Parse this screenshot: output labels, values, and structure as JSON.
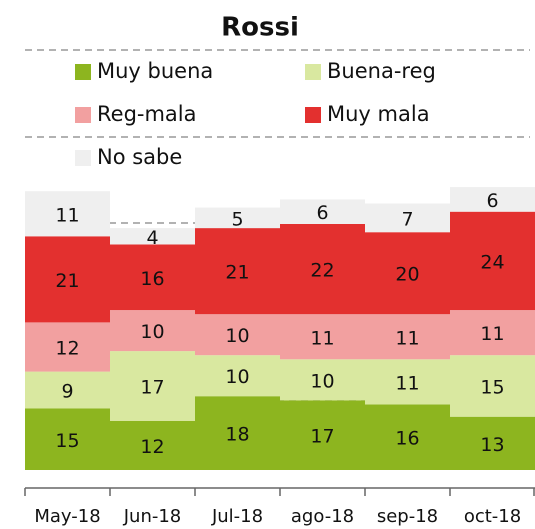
{
  "chart_data": {
    "type": "stacked-bar",
    "title": "Rossi",
    "categories": [
      "May-18",
      "Jun-18",
      "Jul-18",
      "ago-18",
      "sep-18",
      "oct-18"
    ],
    "series": [
      {
        "name": "Muy buena",
        "color": "#8db51f",
        "values": [
          15,
          12,
          18,
          17,
          16,
          13
        ]
      },
      {
        "name": "Buena-reg",
        "color": "#d9e8a0",
        "values": [
          9,
          17,
          10,
          10,
          11,
          15
        ]
      },
      {
        "name": "Reg-mala",
        "color": "#f2a0a0",
        "values": [
          12,
          10,
          10,
          11,
          11,
          11
        ]
      },
      {
        "name": "Muy mala",
        "color": "#e3302f",
        "values": [
          21,
          16,
          21,
          22,
          20,
          24
        ]
      },
      {
        "name": "No sabe",
        "color": "#efefef",
        "values": [
          11,
          4,
          5,
          6,
          7,
          6
        ]
      }
    ],
    "ylim": [
      0,
      70
    ]
  }
}
